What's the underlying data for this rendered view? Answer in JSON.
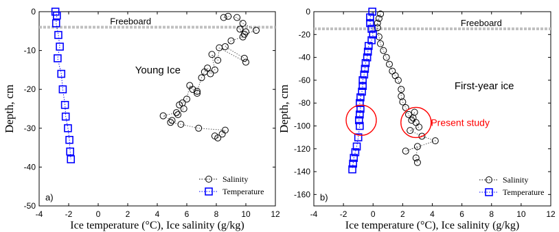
{
  "chart_data": [
    {
      "type": "scatter",
      "panel_label": "a)",
      "xlabel": "Ice temperature (°C), Ice salinity (g/kg)",
      "ylabel": "Depth, cm",
      "xlim": [
        -4,
        12
      ],
      "ylim": [
        -50,
        0
      ],
      "xticks": [
        -4,
        -2,
        0,
        2,
        4,
        6,
        8,
        10,
        12
      ],
      "yticks": [
        0,
        -10,
        -20,
        -30,
        -40,
        -50
      ],
      "grid": false,
      "legend_position": "bottom-right",
      "annotations": [
        {
          "text": "Freeboard",
          "kind": "hline",
          "y": -4
        },
        {
          "text": "Young Ice",
          "kind": "label",
          "x": 2.5,
          "y": -15
        }
      ],
      "series": [
        {
          "name": "Salinity",
          "marker": "circle",
          "color": "#000000",
          "line": "dotted",
          "x": [
            8.5,
            8.8,
            9.4,
            9.8,
            10.7,
            9.9,
            10.0,
            9.6,
            9.8,
            9.0,
            8.6,
            9.9,
            10.0,
            8.2,
            8.1,
            7.7,
            7.9,
            7.6,
            7.4,
            7.2,
            7.0,
            6.7,
            6.7,
            6.4,
            6.2,
            6.0,
            5.7,
            5.5,
            5.8,
            5.4,
            5.3,
            4.4,
            5.0,
            4.9,
            5.6,
            6.8,
            8.6,
            8.4,
            8.1,
            7.9
          ],
          "y": [
            -1.5,
            -1.2,
            -1.5,
            -3.0,
            -4.8,
            -5.8,
            -5.2,
            -4.5,
            -6.5,
            -7.5,
            -9.0,
            -12.0,
            -13.0,
            -9.3,
            -12.5,
            -11.0,
            -15.0,
            -16.0,
            -14.5,
            -15.5,
            -17.0,
            -20.5,
            -21.0,
            -20.0,
            -19.0,
            -22.5,
            -23.5,
            -24.0,
            -25.0,
            -26.5,
            -26.0,
            -26.8,
            -28.0,
            -28.5,
            -29.0,
            -30.0,
            -30.5,
            -31.5,
            -32.5,
            -32.0
          ]
        },
        {
          "name": "Temperature",
          "marker": "square",
          "color": "#0000ff",
          "line": "dotted",
          "x": [
            -2.9,
            -2.8,
            -2.85,
            -2.7,
            -2.6,
            -2.75,
            -2.5,
            -2.4,
            -2.25,
            -2.2,
            -2.05,
            -1.95,
            -1.9,
            -1.85
          ],
          "y": [
            0,
            -1,
            -3,
            -6,
            -9,
            -12,
            -16,
            -20,
            -24,
            -27,
            -30,
            -33,
            -36,
            -38
          ]
        }
      ]
    },
    {
      "type": "scatter",
      "panel_label": "b)",
      "xlabel": "Ice temperature (°C), Ice salinity (g/kg)",
      "ylabel": "Depth, cm",
      "xlim": [
        -4,
        12
      ],
      "ylim": [
        -170,
        0
      ],
      "xticks": [
        -4,
        -2,
        0,
        2,
        4,
        6,
        8,
        10,
        12
      ],
      "yticks": [
        0,
        -20,
        -40,
        -60,
        -80,
        -100,
        -120,
        -140,
        -160
      ],
      "grid": false,
      "legend_position": "bottom-right",
      "annotations": [
        {
          "text": "Freeboard",
          "kind": "hline",
          "y": -15
        },
        {
          "text": "First-year ice",
          "kind": "label",
          "x": 5.5,
          "y": -65
        },
        {
          "text": "Present study",
          "kind": "circle-label",
          "x": 3.9,
          "y": -97,
          "color": "#ff0000"
        }
      ],
      "highlights": [
        {
          "cx": -0.8,
          "cy": -95,
          "color": "#ff0000"
        },
        {
          "cx": 2.9,
          "cy": -97,
          "color": "#ff0000"
        }
      ],
      "series": [
        {
          "name": "Salinity",
          "marker": "circle",
          "color": "#000000",
          "line": "dotted",
          "x": [
            0.5,
            0.4,
            0.3,
            0.3,
            0.4,
            0.5,
            0.7,
            0.9,
            1.1,
            1.3,
            1.5,
            1.7,
            1.9,
            1.9,
            2.0,
            2.2,
            2.4,
            2.6,
            2.8,
            2.7,
            2.9,
            3.1,
            2.5,
            3.3,
            4.2,
            2.2,
            3.0,
            2.9,
            3.0
          ],
          "y": [
            -2,
            -6,
            -10,
            -14,
            -22,
            -28,
            -34,
            -40,
            -46,
            -52,
            -56,
            -60,
            -68,
            -74,
            -79,
            -84,
            -90,
            -95,
            -88,
            -93,
            -97,
            -101,
            -104,
            -109,
            -113,
            -122,
            -118,
            -128,
            -132
          ]
        },
        {
          "name": "Temperature",
          "marker": "square",
          "color": "#0000ff",
          "line": "dotted",
          "x": [
            -0.05,
            -0.2,
            -0.2,
            -0.1,
            0.0,
            -0.1,
            -0.3,
            -0.35,
            -0.4,
            -0.5,
            -0.55,
            -0.6,
            -0.7,
            -0.7,
            -0.75,
            -0.85,
            -0.9,
            -0.85,
            -0.9,
            -0.95,
            -0.9,
            -1.0,
            -1.1,
            -1.2,
            -1.3,
            -1.35,
            -1.4
          ],
          "y": [
            0,
            -5,
            -10,
            -15,
            -20,
            -25,
            -30,
            -35,
            -40,
            -45,
            -50,
            -55,
            -60,
            -65,
            -70,
            -75,
            -80,
            -85,
            -90,
            -95,
            -100,
            -110,
            -118,
            -123,
            -128,
            -133,
            -138
          ]
        }
      ]
    }
  ]
}
